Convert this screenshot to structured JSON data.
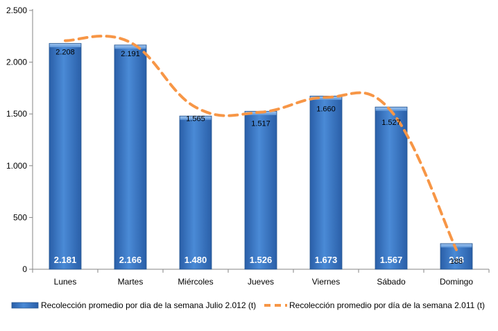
{
  "chart_data": {
    "type": "bar",
    "categories": [
      "Lunes",
      "Martes",
      "Miércoles",
      "Jueves",
      "Viernes",
      "Sábado",
      "Domingo"
    ],
    "series": [
      {
        "name": "Recolección promedio por dia de la semana Julio 2.012 (t)",
        "type": "bar",
        "values": [
          2181,
          2166,
          1480,
          1526,
          1673,
          1567,
          248
        ],
        "labels": [
          "2.181",
          "2.166",
          "1.480",
          "1.526",
          "1.673",
          "1.567",
          "248"
        ],
        "color": "#3a78c8"
      },
      {
        "name": "Recolección promedio por día de la semana 2.011 (t)",
        "type": "line",
        "style": "dashed",
        "values": [
          2208,
          2191,
          1565,
          1517,
          1660,
          1527,
          188
        ],
        "labels": [
          "2.208",
          "2.191",
          "1.565",
          "1.517",
          "1.660",
          "1.527",
          "188"
        ],
        "color": "#f79646"
      }
    ],
    "y_ticks": [
      0,
      500,
      1000,
      1500,
      2000,
      2500
    ],
    "y_tick_labels": [
      "0",
      "500",
      "1.000",
      "1.500",
      "2.000",
      "2.500"
    ],
    "ylim": [
      0,
      2500
    ],
    "grid": false,
    "legend_position": "bottom",
    "title": "",
    "xlabel": "",
    "ylabel": ""
  }
}
